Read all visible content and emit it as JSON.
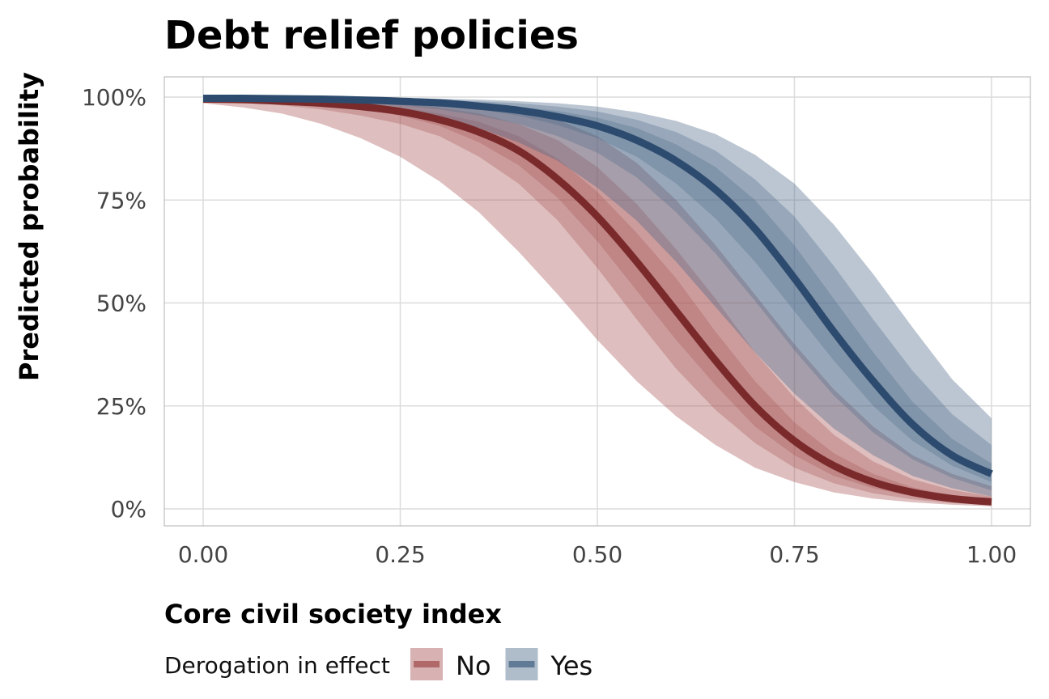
{
  "chart_data": {
    "type": "line",
    "title": "Debt relief policies",
    "xlabel": "Core civil society index",
    "ylabel": "Predicted probability",
    "xlim": [
      0,
      1
    ],
    "ylim": [
      0,
      1
    ],
    "x_ticks": [
      0,
      0.25,
      0.5,
      0.75,
      1.0
    ],
    "x_tick_labels": [
      "0.00",
      "0.25",
      "0.50",
      "0.75",
      "1.00"
    ],
    "y_ticks": [
      0,
      0.25,
      0.5,
      0.75,
      1.0
    ],
    "y_tick_labels": [
      "0%",
      "25%",
      "50%",
      "75%",
      "100%"
    ],
    "grid": true,
    "legend": {
      "title": "Derogation in effect",
      "position": "bottom-left"
    },
    "series": [
      {
        "name": "No",
        "color": "#7a2a2a",
        "band_color": "#a85555",
        "x": [
          0,
          0.05,
          0.1,
          0.15,
          0.2,
          0.25,
          0.3,
          0.35,
          0.4,
          0.45,
          0.5,
          0.55,
          0.6,
          0.65,
          0.7,
          0.75,
          0.8,
          0.85,
          0.9,
          0.95,
          1.0
        ],
        "y": [
          0.995,
          0.994,
          0.99,
          0.985,
          0.977,
          0.965,
          0.945,
          0.915,
          0.87,
          0.8,
          0.71,
          0.6,
          0.48,
          0.36,
          0.25,
          0.165,
          0.105,
          0.065,
          0.04,
          0.025,
          0.017
        ],
        "bands": [
          {
            "level": 0.5,
            "lower": [
              0.994,
              0.992,
              0.987,
              0.98,
              0.97,
              0.955,
              0.93,
              0.89,
              0.835,
              0.755,
              0.65,
              0.53,
              0.41,
              0.3,
              0.2,
              0.13,
              0.08,
              0.05,
              0.03,
              0.019,
              0.013
            ],
            "upper": [
              0.996,
              0.995,
              0.993,
              0.99,
              0.985,
              0.975,
              0.96,
              0.94,
              0.905,
              0.85,
              0.77,
              0.67,
              0.56,
              0.43,
              0.31,
              0.21,
              0.135,
              0.085,
              0.052,
              0.033,
              0.022
            ]
          },
          {
            "level": 0.8,
            "lower": [
              0.992,
              0.988,
              0.98,
              0.97,
              0.955,
              0.935,
              0.905,
              0.855,
              0.79,
              0.7,
              0.585,
              0.46,
              0.34,
              0.24,
              0.16,
              0.1,
              0.062,
              0.038,
              0.023,
              0.014,
              0.009
            ],
            "upper": [
              0.997,
              0.996,
              0.995,
              0.993,
              0.99,
              0.985,
              0.975,
              0.96,
              0.935,
              0.895,
              0.83,
              0.74,
              0.63,
              0.51,
              0.38,
              0.27,
              0.18,
              0.115,
              0.072,
              0.046,
              0.03
            ]
          },
          {
            "level": 0.95,
            "lower": [
              0.985,
              0.975,
              0.96,
              0.935,
              0.9,
              0.855,
              0.795,
              0.72,
              0.625,
              0.52,
              0.41,
              0.31,
              0.225,
              0.155,
              0.1,
              0.065,
              0.04,
              0.025,
              0.016,
              0.01,
              0.006
            ],
            "upper": [
              0.998,
              0.998,
              0.997,
              0.996,
              0.995,
              0.993,
              0.99,
              0.982,
              0.968,
              0.945,
              0.905,
              0.84,
              0.75,
              0.64,
              0.52,
              0.4,
              0.29,
              0.2,
              0.13,
              0.085,
              0.055
            ]
          }
        ]
      },
      {
        "name": "Yes",
        "color": "#2d4b6e",
        "band_color": "#4d6a8a",
        "x": [
          0,
          0.05,
          0.1,
          0.15,
          0.2,
          0.25,
          0.3,
          0.35,
          0.4,
          0.45,
          0.5,
          0.55,
          0.6,
          0.65,
          0.7,
          0.75,
          0.8,
          0.85,
          0.9,
          0.95,
          1.0
        ],
        "y": [
          0.997,
          0.997,
          0.996,
          0.995,
          0.993,
          0.99,
          0.986,
          0.978,
          0.968,
          0.952,
          0.93,
          0.895,
          0.845,
          0.775,
          0.68,
          0.56,
          0.43,
          0.31,
          0.205,
          0.13,
          0.085
        ],
        "bands": [
          {
            "level": 0.5,
            "lower": [
              0.996,
              0.996,
              0.995,
              0.993,
              0.99,
              0.986,
              0.98,
              0.97,
              0.955,
              0.932,
              0.9,
              0.855,
              0.79,
              0.705,
              0.6,
              0.48,
              0.36,
              0.25,
              0.165,
              0.105,
              0.065
            ],
            "upper": [
              0.998,
              0.998,
              0.997,
              0.996,
              0.995,
              0.993,
              0.99,
              0.985,
              0.977,
              0.966,
              0.95,
              0.925,
              0.885,
              0.83,
              0.75,
              0.64,
              0.51,
              0.38,
              0.26,
              0.17,
              0.11
            ]
          },
          {
            "level": 0.8,
            "lower": [
              0.995,
              0.994,
              0.992,
              0.99,
              0.986,
              0.98,
              0.97,
              0.955,
              0.935,
              0.905,
              0.865,
              0.805,
              0.72,
              0.62,
              0.505,
              0.385,
              0.275,
              0.185,
              0.12,
              0.075,
              0.045
            ],
            "upper": [
              0.999,
              0.998,
              0.998,
              0.997,
              0.996,
              0.995,
              0.993,
              0.99,
              0.985,
              0.977,
              0.965,
              0.945,
              0.915,
              0.87,
              0.8,
              0.71,
              0.59,
              0.46,
              0.335,
              0.23,
              0.155
            ]
          },
          {
            "level": 0.95,
            "lower": [
              0.992,
              0.99,
              0.987,
              0.982,
              0.975,
              0.965,
              0.95,
              0.925,
              0.89,
              0.845,
              0.78,
              0.7,
              0.6,
              0.49,
              0.38,
              0.28,
              0.195,
              0.13,
              0.08,
              0.05,
              0.03
            ],
            "upper": [
              0.999,
              0.999,
              0.999,
              0.998,
              0.998,
              0.997,
              0.996,
              0.994,
              0.99,
              0.985,
              0.977,
              0.963,
              0.942,
              0.91,
              0.86,
              0.79,
              0.69,
              0.57,
              0.44,
              0.315,
              0.22
            ]
          }
        ]
      }
    ]
  }
}
